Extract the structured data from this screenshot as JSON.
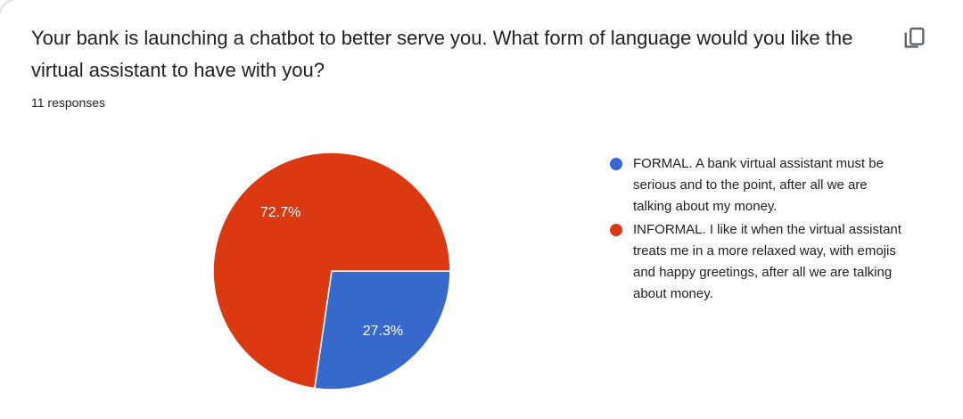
{
  "header": {
    "title": "Your bank is launching a chatbot to better serve you. What form of language would you like the virtual assistant to have with you?",
    "responses_count": "11 responses",
    "copy_button_tooltip": "Copy"
  },
  "colors": {
    "slice_blue": "#3769CD",
    "slice_red": "#DB3912",
    "text_dark": "#202124",
    "icon_gray": "#5F6368",
    "card_border": "#DADCE0",
    "percent_label": "#FFFFFF"
  },
  "chart_data": {
    "type": "pie",
    "title": "",
    "start_angle_deg": 0,
    "direction": "clockwise",
    "legend_position": "right",
    "total_responses": 11,
    "slices": [
      {
        "label": "FORMAL. A bank virtual assistant must be serious and to the point, after all we are talking about my money.",
        "value": 27.3,
        "percent_label": "27.3%",
        "color": "#3769CD"
      },
      {
        "label": "INFORMAL. I like it when the virtual assistant treats me in a more relaxed way, with emojis and happy greetings, after all we are talking about money.",
        "value": 72.7,
        "percent_label": "72.7%",
        "color": "#DB3912"
      }
    ]
  }
}
